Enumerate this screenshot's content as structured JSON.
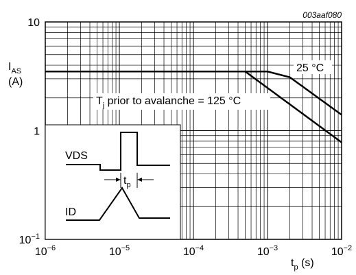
{
  "chart_data": {
    "type": "line",
    "figure_id": "003aaf080",
    "ylabel_main": "I",
    "ylabel_sub": "AS",
    "ylabel_unit": "(A)",
    "xlabel_main": "t",
    "xlabel_sub": "p",
    "xlabel_unit": " (s)",
    "x_scale": "log",
    "y_scale": "log",
    "xlim": [
      1e-06,
      0.01
    ],
    "ylim": [
      0.1,
      10
    ],
    "grid": true,
    "x_ticks": [
      {
        "base": "10",
        "exp": "−6"
      },
      {
        "base": "10",
        "exp": "−5"
      },
      {
        "base": "10",
        "exp": "−4"
      },
      {
        "base": "10",
        "exp": "−3"
      },
      {
        "base": "10",
        "exp": "−2"
      }
    ],
    "y_ticks": [
      {
        "base": "10",
        "exp": "−1"
      },
      {
        "base": "1",
        "exp": ""
      },
      {
        "base": "10",
        "exp": ""
      }
    ],
    "series": [
      {
        "name": "25 °C",
        "x": [
          1e-06,
          0.0005,
          0.001,
          0.002,
          0.01
        ],
        "y": [
          3.5,
          3.5,
          3.5,
          3.1,
          1.4
        ]
      },
      {
        "name": "T_j prior to avalanche = 125 °C",
        "name_main": "T",
        "name_sub": "j",
        "name_rest": " prior to avalanche = 125 °C",
        "x": [
          1e-06,
          0.0005,
          0.01
        ],
        "y": [
          3.5,
          3.5,
          0.78
        ]
      }
    ],
    "inset": {
      "vds_label": "VDS",
      "id_label": "ID",
      "tp_main": "t",
      "tp_sub": "p"
    }
  }
}
